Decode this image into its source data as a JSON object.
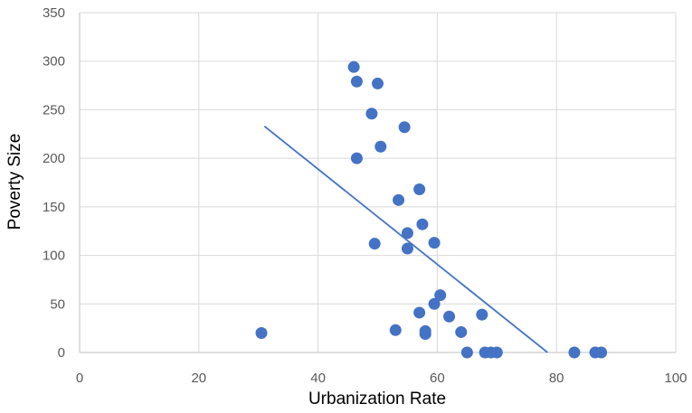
{
  "chart_data": {
    "type": "scatter",
    "xlabel": "Urbanization Rate",
    "ylabel": "Poverty Size",
    "xlim": [
      0,
      100
    ],
    "ylim": [
      0,
      350
    ],
    "x_ticks": [
      0,
      20,
      40,
      60,
      80,
      100
    ],
    "y_ticks": [
      0,
      50,
      100,
      150,
      200,
      250,
      300,
      350
    ],
    "grid": "vertical and horizontal gridlines",
    "point_color": "#4472c4",
    "trendline_color": "#4472c4",
    "trendline": {
      "type": "linear",
      "x": [
        31,
        78.5
      ],
      "y": [
        233,
        0
      ]
    },
    "points": [
      {
        "x": 30.5,
        "y": 20
      },
      {
        "x": 46,
        "y": 294
      },
      {
        "x": 46.5,
        "y": 279
      },
      {
        "x": 50,
        "y": 277
      },
      {
        "x": 49,
        "y": 246
      },
      {
        "x": 54.5,
        "y": 232
      },
      {
        "x": 50.5,
        "y": 212
      },
      {
        "x": 46.5,
        "y": 200
      },
      {
        "x": 57,
        "y": 168
      },
      {
        "x": 53.5,
        "y": 157
      },
      {
        "x": 57.5,
        "y": 132
      },
      {
        "x": 55,
        "y": 123
      },
      {
        "x": 49.5,
        "y": 112
      },
      {
        "x": 59.5,
        "y": 113
      },
      {
        "x": 55,
        "y": 107
      },
      {
        "x": 60.5,
        "y": 59
      },
      {
        "x": 59.5,
        "y": 50
      },
      {
        "x": 57,
        "y": 41
      },
      {
        "x": 62,
        "y": 37
      },
      {
        "x": 67.5,
        "y": 39
      },
      {
        "x": 53,
        "y": 23
      },
      {
        "x": 58,
        "y": 22
      },
      {
        "x": 58,
        "y": 19
      },
      {
        "x": 64,
        "y": 21
      },
      {
        "x": 65,
        "y": 0
      },
      {
        "x": 68,
        "y": 0
      },
      {
        "x": 69,
        "y": 0
      },
      {
        "x": 70,
        "y": 0
      },
      {
        "x": 83,
        "y": 0
      },
      {
        "x": 86.5,
        "y": 0
      },
      {
        "x": 87.5,
        "y": 0
      }
    ]
  }
}
